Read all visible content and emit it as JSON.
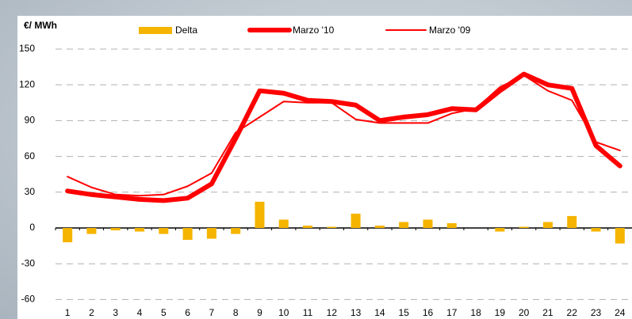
{
  "chart_data": {
    "type": "bar_line",
    "y_label": "€/ MWh",
    "categories": [
      "1",
      "2",
      "3",
      "4",
      "5",
      "6",
      "7",
      "8",
      "9",
      "10",
      "11",
      "12",
      "13",
      "14",
      "15",
      "16",
      "17",
      "18",
      "19",
      "20",
      "21",
      "22",
      "23",
      "24"
    ],
    "series": [
      {
        "name": "Delta",
        "type": "bar",
        "color": "#f5b400",
        "values": [
          -12,
          -5,
          -2,
          -3,
          -5,
          -10,
          -9,
          -5,
          22,
          7,
          2,
          1,
          12,
          2,
          5,
          7,
          4,
          0,
          -3,
          1,
          5,
          10,
          -3,
          -13
        ]
      },
      {
        "name": "Marzo '10",
        "type": "line",
        "color": "#ff0000",
        "width": 6,
        "values": [
          31,
          28,
          26,
          24,
          23,
          25,
          37,
          75,
          115,
          113,
          107,
          106,
          103,
          90,
          93,
          95,
          100,
          99,
          115,
          129,
          120,
          117,
          69,
          52
        ]
      },
      {
        "name": "Marzo '09",
        "type": "line",
        "color": "#ff0000",
        "width": 2,
        "values": [
          43,
          34,
          28,
          27,
          28,
          35,
          46,
          80,
          93,
          106,
          105,
          105,
          91,
          88,
          88,
          88,
          96,
          100,
          118,
          128,
          115,
          107,
          72,
          65
        ]
      }
    ],
    "ylim": [
      -65,
      155
    ],
    "yticks": [
      150,
      120,
      90,
      60,
      30,
      0,
      -30,
      -60
    ],
    "grid": true
  }
}
